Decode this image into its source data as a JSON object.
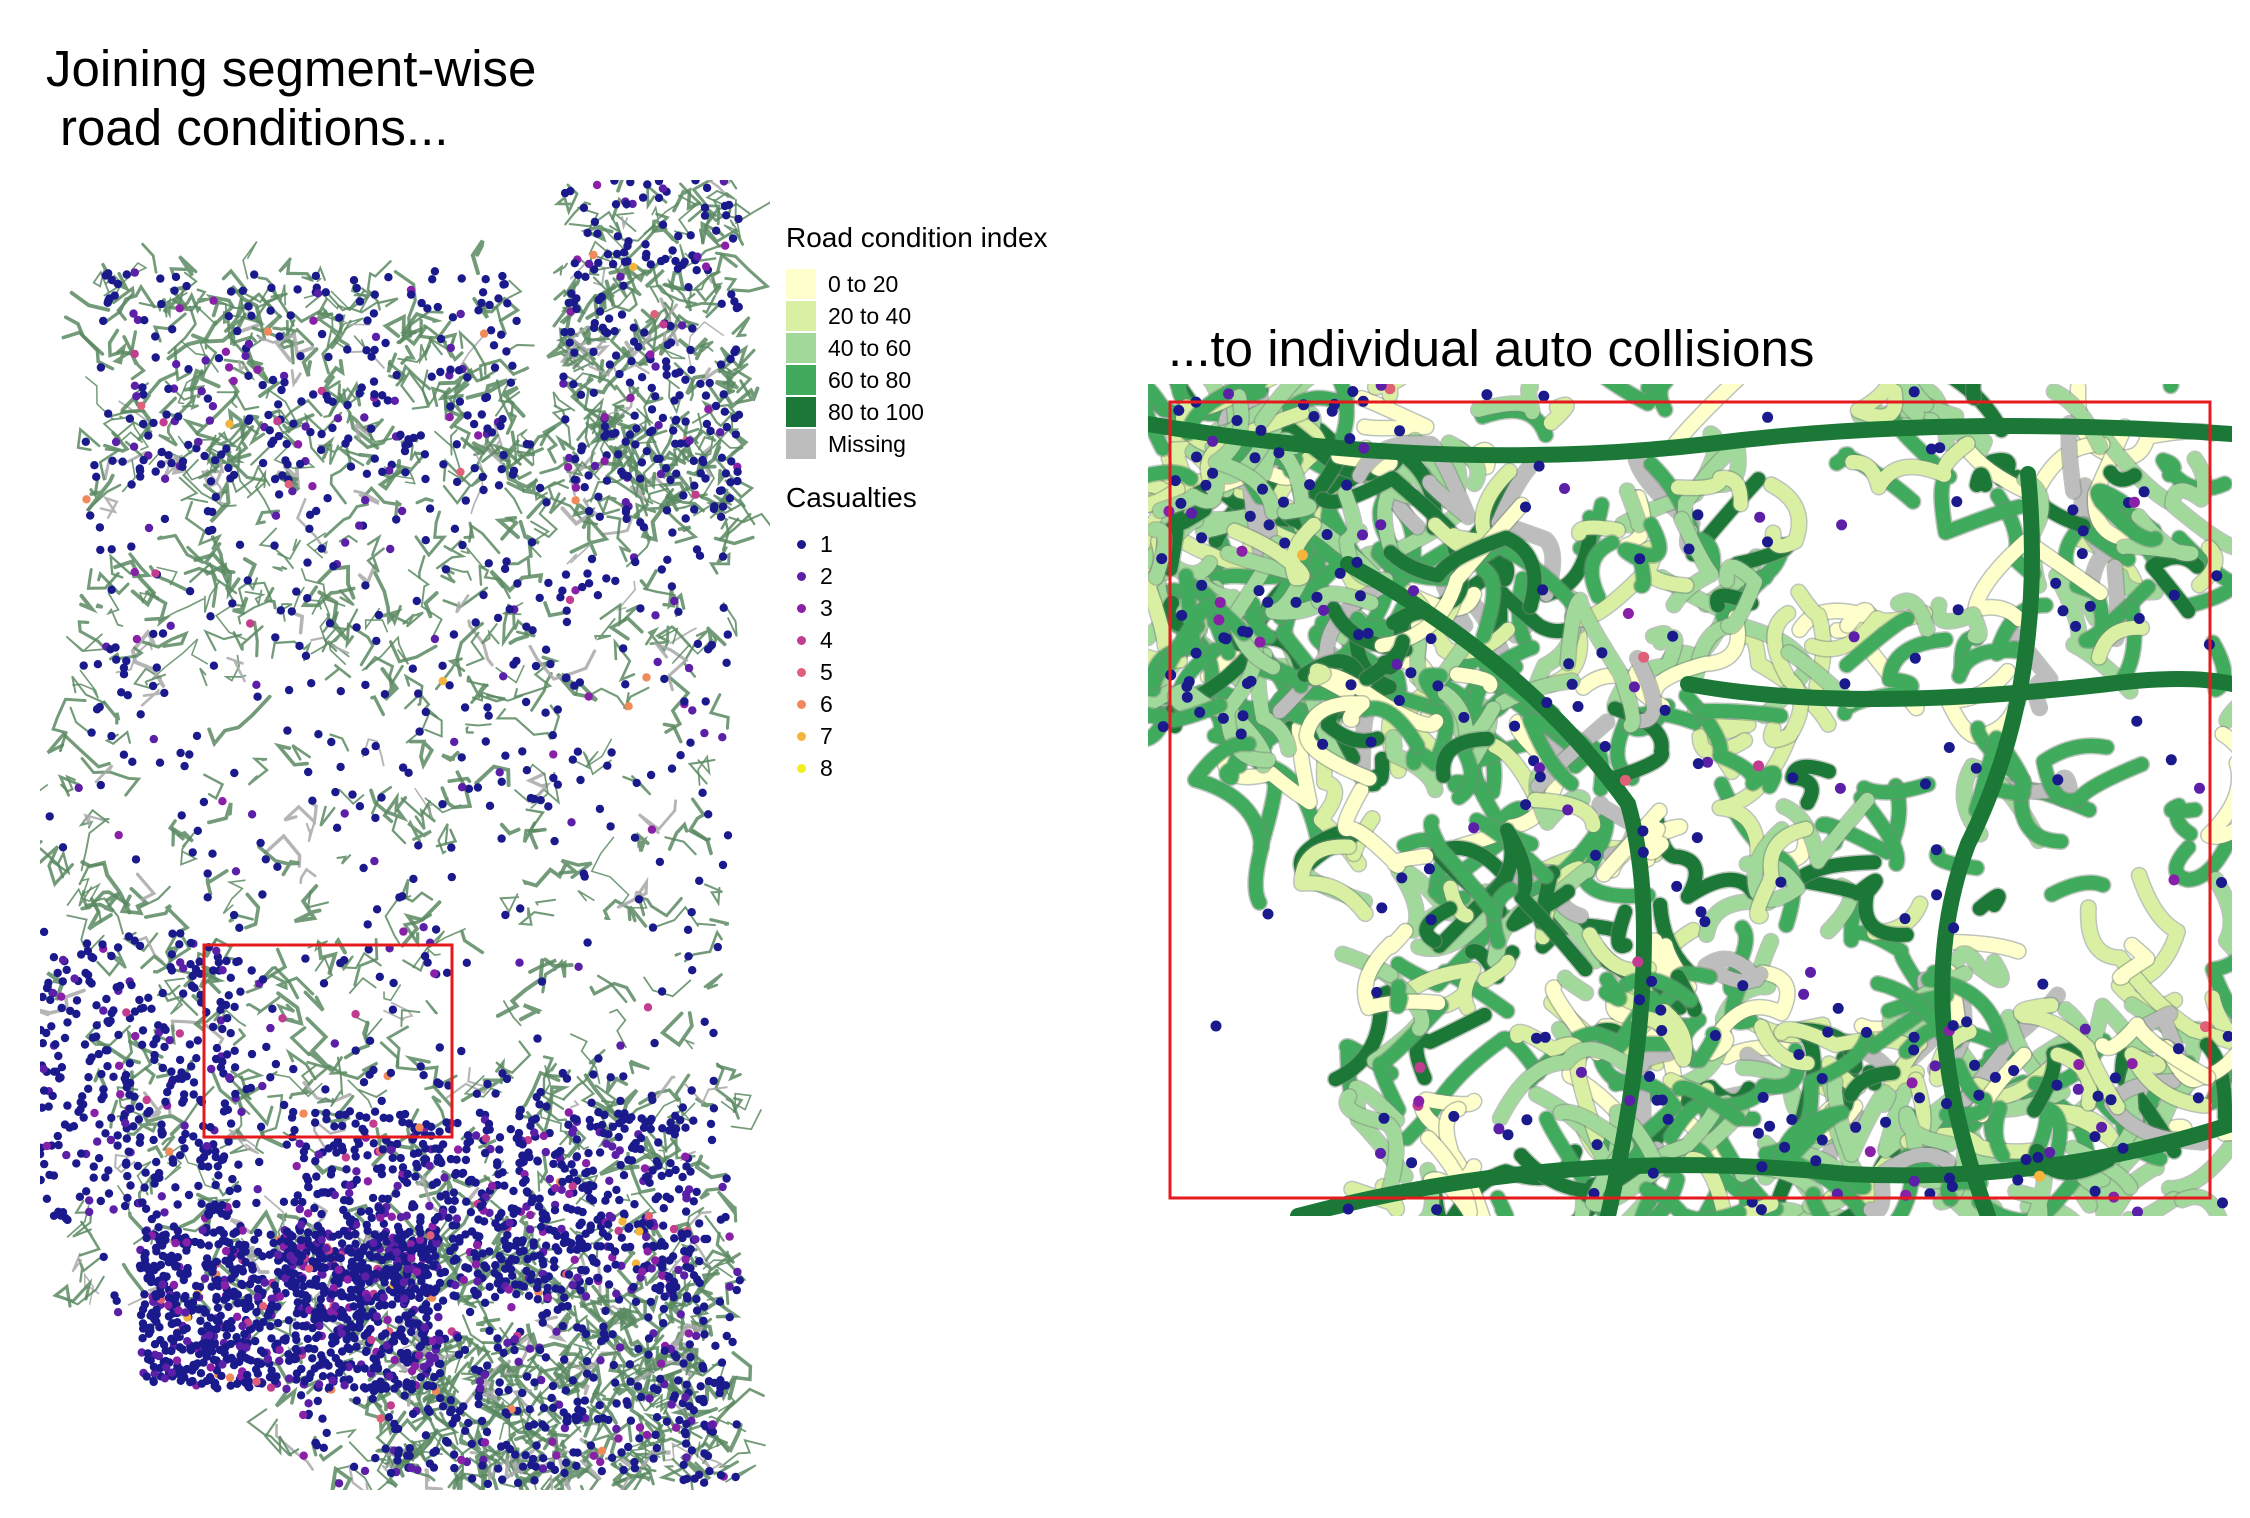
{
  "headings": {
    "left_line1": "Joining segment-wise",
    "left_line2": "road conditions...",
    "right": "...to individual auto collisions"
  },
  "legend": {
    "condition_title": "Road condition index",
    "condition_items": [
      {
        "label": "0 to 20",
        "color": "#ffffcc"
      },
      {
        "label": "20 to 40",
        "color": "#d9f0a3"
      },
      {
        "label": "40 to 60",
        "color": "#a1d99b"
      },
      {
        "label": "60 to 80",
        "color": "#41ab5d"
      },
      {
        "label": "80 to 100",
        "color": "#1b7837"
      },
      {
        "label": "Missing",
        "color": "#bdbdbd"
      }
    ],
    "casualties_title": "Casualties",
    "casualty_items": [
      {
        "label": "1",
        "color": "#1a1a8c"
      },
      {
        "label": "2",
        "color": "#5b1fa8"
      },
      {
        "label": "3",
        "color": "#8a1fa8"
      },
      {
        "label": "4",
        "color": "#c23c8f"
      },
      {
        "label": "5",
        "color": "#e0607a"
      },
      {
        "label": "6",
        "color": "#f08a5a"
      },
      {
        "label": "7",
        "color": "#f5b43c"
      },
      {
        "label": "8",
        "color": "#f0f020"
      }
    ]
  },
  "colors": {
    "zoom_box": "#e41a1c",
    "overview_road": "#5a8a62",
    "background": "#ffffff"
  }
}
